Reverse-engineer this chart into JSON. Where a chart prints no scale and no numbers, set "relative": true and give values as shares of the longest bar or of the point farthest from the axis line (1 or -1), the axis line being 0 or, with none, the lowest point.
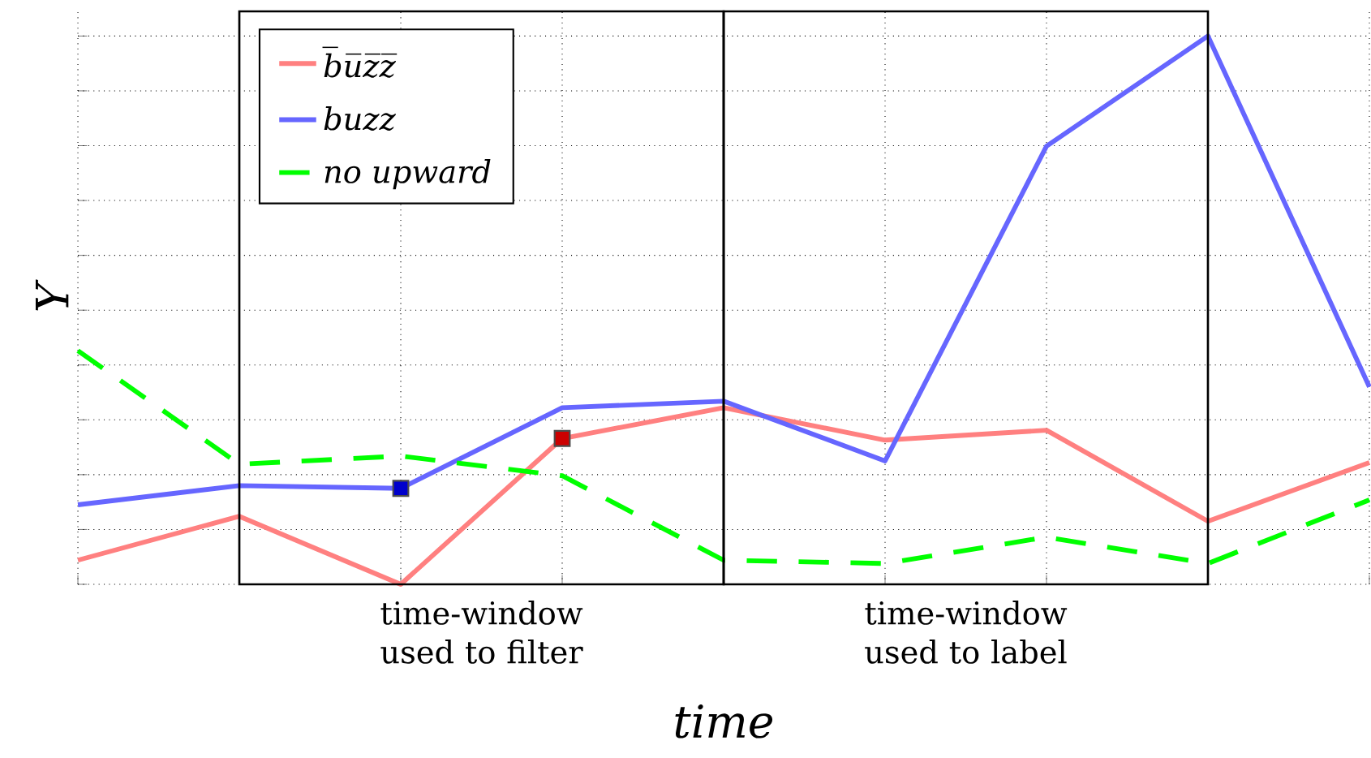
{
  "chart_data": {
    "type": "line",
    "relative": true,
    "xlabel": "time",
    "ylabel": "Y",
    "categories": [
      null,
      null,
      null,
      null,
      null,
      null,
      null,
      null,
      null
    ],
    "grid": true,
    "legend": "top left",
    "annotations": [
      "time-window used to filter",
      "time-window used to label"
    ],
    "series": [
      {
        "name": "b̅u̅z̅z̅",
        "color": "#ff8080",
        "values": [
          0.044,
          0.124,
          0,
          0.266,
          0.322,
          0.263,
          0.281,
          0.115,
          0.222
        ]
      },
      {
        "name": "buzz",
        "color": "#6666ff",
        "values": [
          0.145,
          0.18,
          0.175,
          0.322,
          0.334,
          0.225,
          0.799,
          1,
          0.36
        ]
      },
      {
        "name": "no upward",
        "color": "#00ff00",
        "line_style": "dashed",
        "values": [
          0.426,
          0.219,
          0.234,
          0.198,
          0.044,
          0.038,
          0.086,
          0.038,
          0.154
        ]
      }
    ]
  }
}
